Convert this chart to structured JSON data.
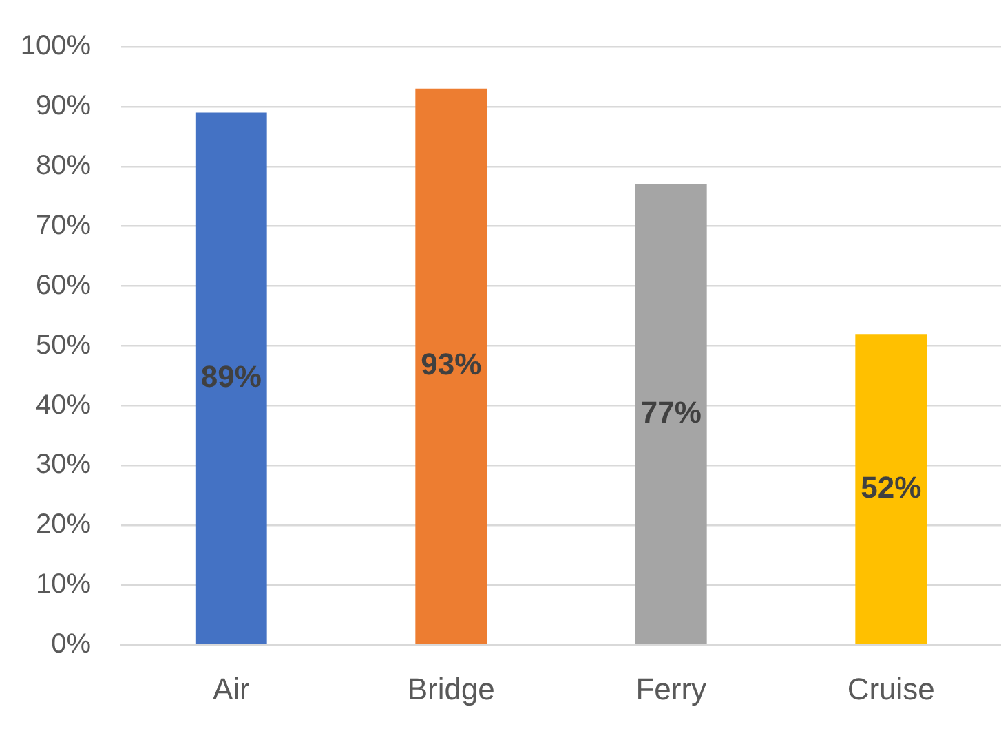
{
  "chart_data": {
    "type": "bar",
    "categories": [
      "Air",
      "Bridge",
      "Ferry",
      "Cruise"
    ],
    "values": [
      89,
      93,
      77,
      52
    ],
    "colors": [
      "#4472c4",
      "#ed7d31",
      "#a5a5a5",
      "#ffc000"
    ],
    "value_labels": [
      "89%",
      "93%",
      "77%",
      "52%"
    ],
    "ylim": [
      0,
      100
    ],
    "yticks": [
      {
        "value": 0,
        "label": "0%"
      },
      {
        "value": 10,
        "label": "10%"
      },
      {
        "value": 20,
        "label": "20%"
      },
      {
        "value": 30,
        "label": "30%"
      },
      {
        "value": 40,
        "label": "40%"
      },
      {
        "value": 50,
        "label": "50%"
      },
      {
        "value": 60,
        "label": "60%"
      },
      {
        "value": 70,
        "label": "70%"
      },
      {
        "value": 80,
        "label": "80%"
      },
      {
        "value": 90,
        "label": "90%"
      },
      {
        "value": 100,
        "label": "100%"
      }
    ],
    "grid": "y",
    "legend": false
  }
}
